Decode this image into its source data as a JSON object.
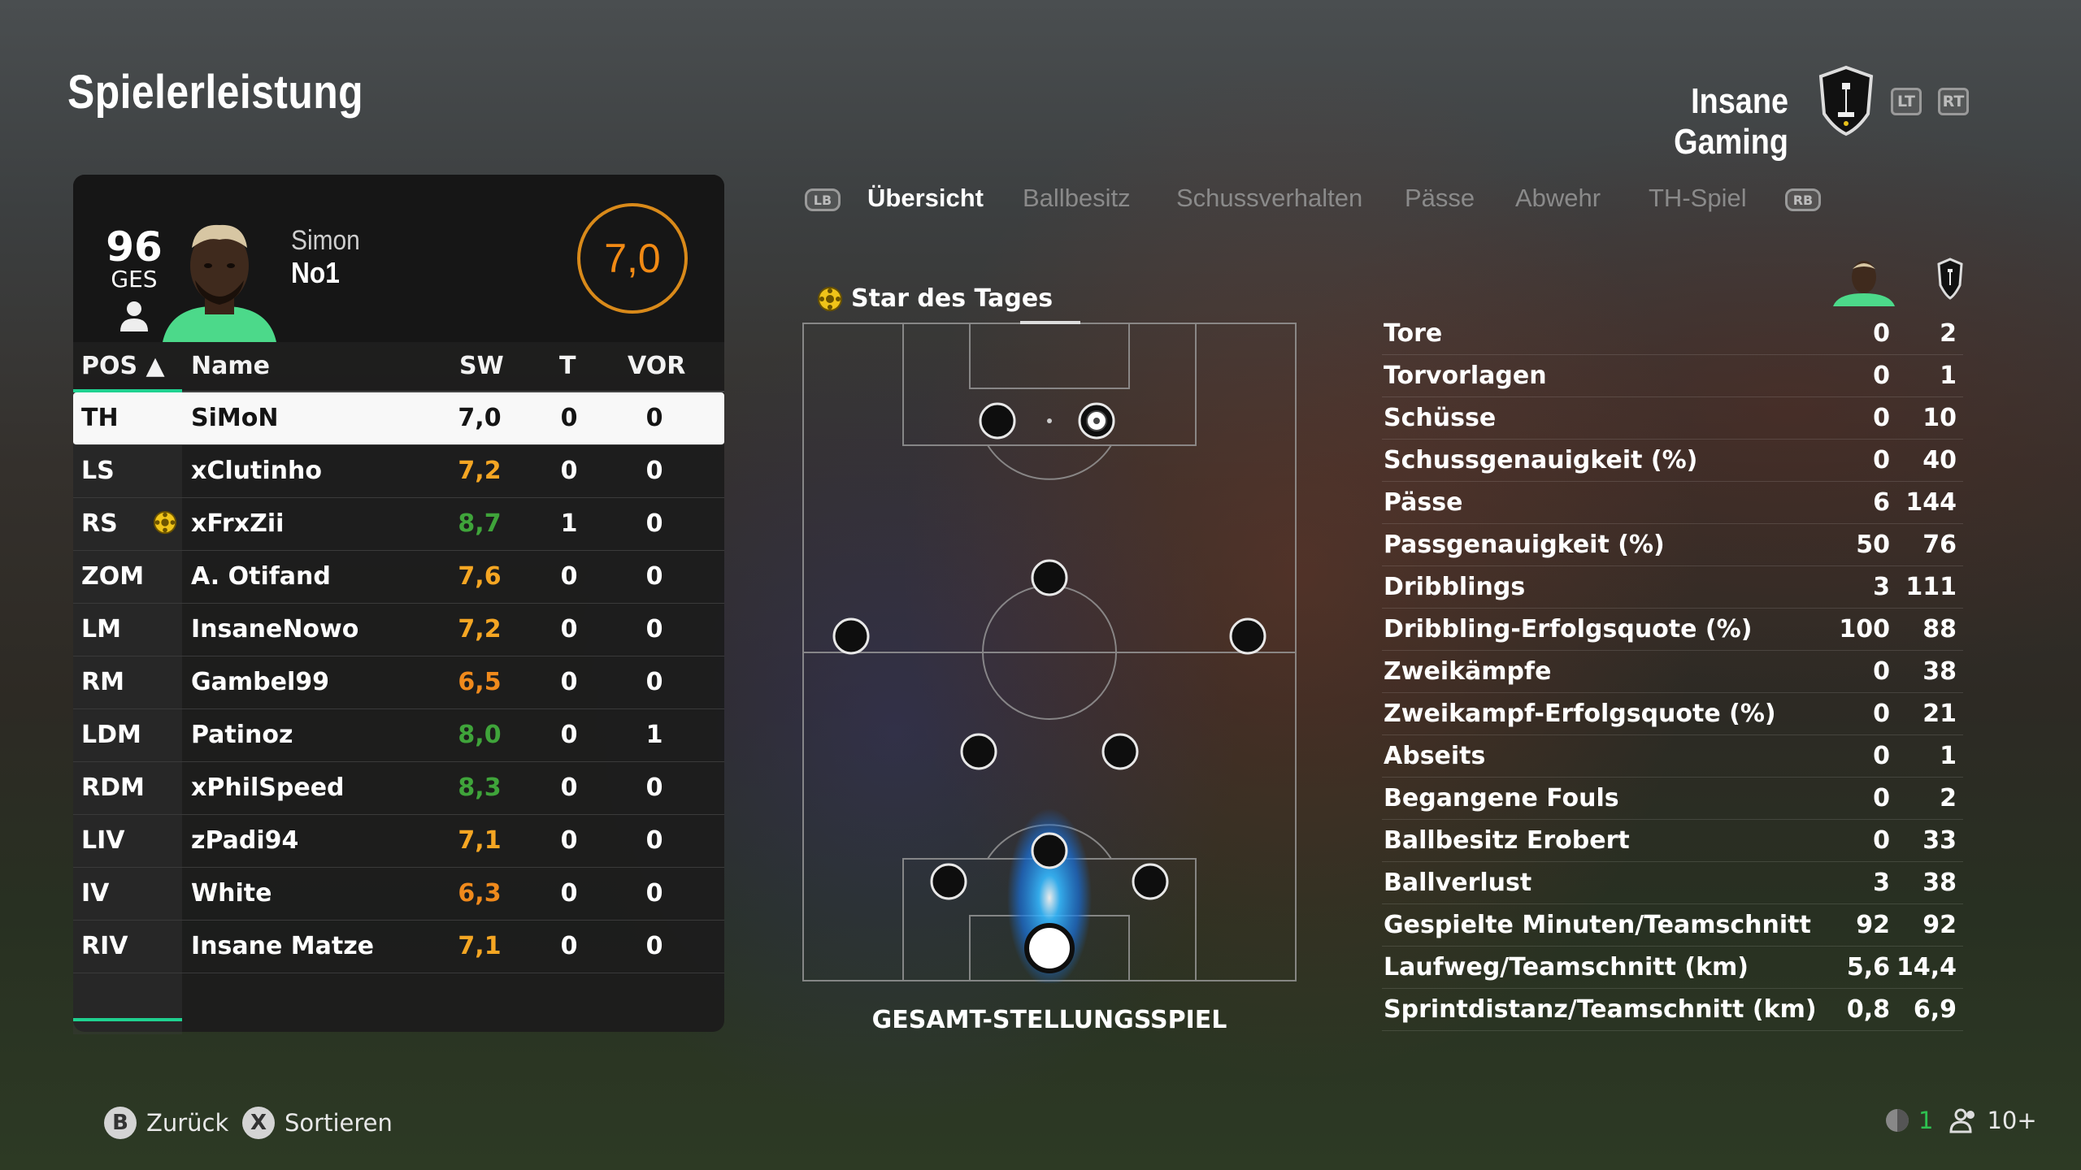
{
  "header": {
    "title": "Spielerleistung",
    "team_name": "Insane Gaming",
    "lt_label": "LT",
    "rt_label": "RT"
  },
  "player_card": {
    "overall": "96",
    "overall_label": "GES",
    "first_name": "Simon",
    "last_name": "No1",
    "match_rating": "7,0"
  },
  "table": {
    "headers": {
      "pos": "POS ▲",
      "name": "Name",
      "sw": "SW",
      "t": "T",
      "vor": "VOR"
    },
    "rows": [
      {
        "pos": "TH",
        "name": "SiMoN",
        "sw": "7,0",
        "t": "0",
        "vor": "0",
        "color": "#141414",
        "selected": true,
        "star": false
      },
      {
        "pos": "LS",
        "name": "xClutinho",
        "sw": "7,2",
        "t": "0",
        "vor": "0",
        "color": "#f5a623",
        "selected": false,
        "star": false
      },
      {
        "pos": "RS",
        "name": "xFrxZii",
        "sw": "8,7",
        "t": "1",
        "vor": "0",
        "color": "#3fa43a",
        "selected": false,
        "star": true
      },
      {
        "pos": "ZOM",
        "name": "A. Otifand",
        "sw": "7,6",
        "t": "0",
        "vor": "0",
        "color": "#f5a623",
        "selected": false,
        "star": false
      },
      {
        "pos": "LM",
        "name": "InsaneNowo",
        "sw": "7,2",
        "t": "0",
        "vor": "0",
        "color": "#f5a623",
        "selected": false,
        "star": false
      },
      {
        "pos": "RM",
        "name": "Gambel99",
        "sw": "6,5",
        "t": "0",
        "vor": "0",
        "color": "#f08a1c",
        "selected": false,
        "star": false
      },
      {
        "pos": "LDM",
        "name": "Patinoz",
        "sw": "8,0",
        "t": "0",
        "vor": "1",
        "color": "#3fa43a",
        "selected": false,
        "star": false
      },
      {
        "pos": "RDM",
        "name": "xPhilSpeed",
        "sw": "8,3",
        "t": "0",
        "vor": "0",
        "color": "#3fa43a",
        "selected": false,
        "star": false
      },
      {
        "pos": "LIV",
        "name": "zPadi94",
        "sw": "7,1",
        "t": "0",
        "vor": "0",
        "color": "#f5a623",
        "selected": false,
        "star": false
      },
      {
        "pos": "IV",
        "name": "White",
        "sw": "6,3",
        "t": "0",
        "vor": "0",
        "color": "#f08a1c",
        "selected": false,
        "star": false
      },
      {
        "pos": "RIV",
        "name": "Insane Matze",
        "sw": "7,1",
        "t": "0",
        "vor": "0",
        "color": "#f5a623",
        "selected": false,
        "star": false
      }
    ]
  },
  "tabs": {
    "lb": "LB",
    "rb": "RB",
    "items": [
      "Übersicht",
      "Ballbesitz",
      "Schussverhalten",
      "Pässe",
      "Abwehr",
      "TH-Spiel"
    ],
    "active": "Übersicht"
  },
  "pitch": {
    "star_label": "Star des Tages",
    "caption": "GESAMT-STELLUNGSSPIEL"
  },
  "stats": [
    {
      "label": "Tore",
      "player": "0",
      "team": "2"
    },
    {
      "label": "Torvorlagen",
      "player": "0",
      "team": "1"
    },
    {
      "label": "Schüsse",
      "player": "0",
      "team": "10"
    },
    {
      "label": "Schussgenauigkeit (%)",
      "player": "0",
      "team": "40"
    },
    {
      "label": "Pässe",
      "player": "6",
      "team": "144"
    },
    {
      "label": "Passgenauigkeit (%)",
      "player": "50",
      "team": "76"
    },
    {
      "label": "Dribblings",
      "player": "3",
      "team": "111"
    },
    {
      "label": "Dribbling-Erfolgsquote (%)",
      "player": "100",
      "team": "88"
    },
    {
      "label": "Zweikämpfe",
      "player": "0",
      "team": "38"
    },
    {
      "label": "Zweikampf-Erfolgsquote (%)",
      "player": "0",
      "team": "21"
    },
    {
      "label": "Abseits",
      "player": "0",
      "team": "1"
    },
    {
      "label": "Begangene Fouls",
      "player": "0",
      "team": "2"
    },
    {
      "label": "Ballbesitz Erobert",
      "player": "0",
      "team": "33"
    },
    {
      "label": "Ballverlust",
      "player": "3",
      "team": "38"
    },
    {
      "label": "Gespielte Minuten/Teamschnitt",
      "player": "92",
      "team": "92"
    },
    {
      "label": "Laufweg/Teamschnitt (km)",
      "player": "5,6",
      "team": "14,4"
    },
    {
      "label": "Sprintdistanz/Teamschnitt (km)",
      "player": "0,8",
      "team": "6,9"
    }
  ],
  "footer": {
    "back_btn": "B",
    "back_label": "Zurück",
    "sort_btn": "X",
    "sort_label": "Sortieren",
    "ping": "1",
    "players": "10+"
  },
  "colors": {
    "accent": "#1fd190",
    "rating_orange": "#f28a14",
    "good_green": "#3fa43a"
  }
}
